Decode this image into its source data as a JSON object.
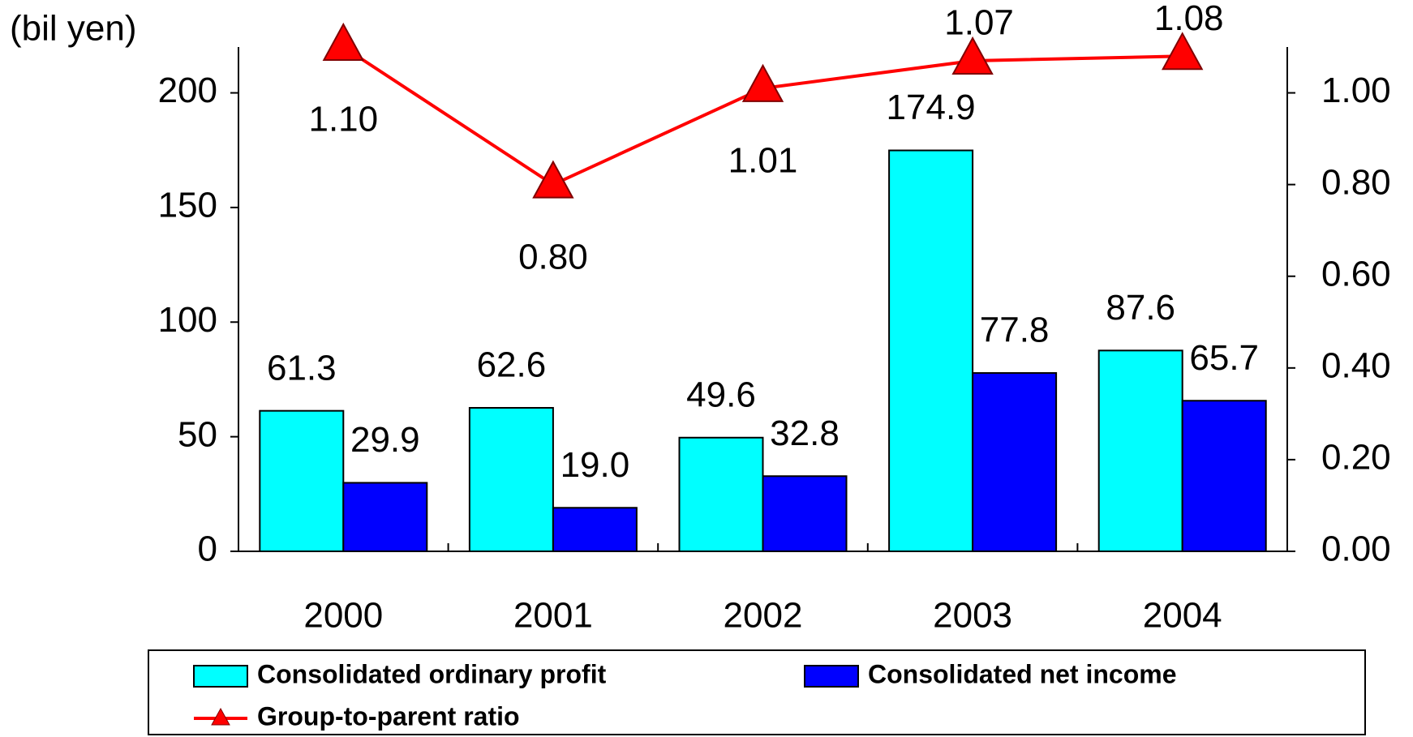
{
  "chart_data": {
    "type": "bar",
    "y_label": "(bil yen)",
    "categories": [
      "2000",
      "2001",
      "2002",
      "2003",
      "2004"
    ],
    "series": [
      {
        "name": "Consolidated ordinary profit",
        "color": "#00ffff",
        "values": [
          61.3,
          62.6,
          49.6,
          174.9,
          87.6
        ],
        "value_labels": [
          "61.3",
          "62.6",
          "49.6",
          "174.9",
          "87.6"
        ]
      },
      {
        "name": "Consolidated net income",
        "color": "#0000ff",
        "values": [
          29.9,
          19.0,
          32.8,
          77.8,
          65.7
        ],
        "value_labels": [
          "29.9",
          "19.0",
          "32.8",
          "77.8",
          "65.7"
        ]
      },
      {
        "name": "Group-to-parent ratio",
        "type": "line",
        "axis": "y2",
        "color": "#ff0000",
        "values": [
          1.1,
          0.8,
          1.01,
          1.07,
          1.08
        ],
        "value_labels": [
          "1.10",
          "0.80",
          "1.01",
          "1.07",
          "1.08"
        ]
      }
    ],
    "ylim": [
      0,
      220
    ],
    "yticks": [
      0,
      50,
      100,
      150,
      200
    ],
    "y2lim": [
      0,
      1.1
    ],
    "y2ticks": [
      {
        "value": 0,
        "label": "0.00"
      },
      {
        "value": 0.2,
        "label": "0.20"
      },
      {
        "value": 0.4,
        "label": "0.40"
      },
      {
        "value": 0.6,
        "label": "0.60"
      },
      {
        "value": 0.8,
        "label": "0.80"
      },
      {
        "value": 1.0,
        "label": "1.00"
      }
    ],
    "legend": "bottom"
  }
}
